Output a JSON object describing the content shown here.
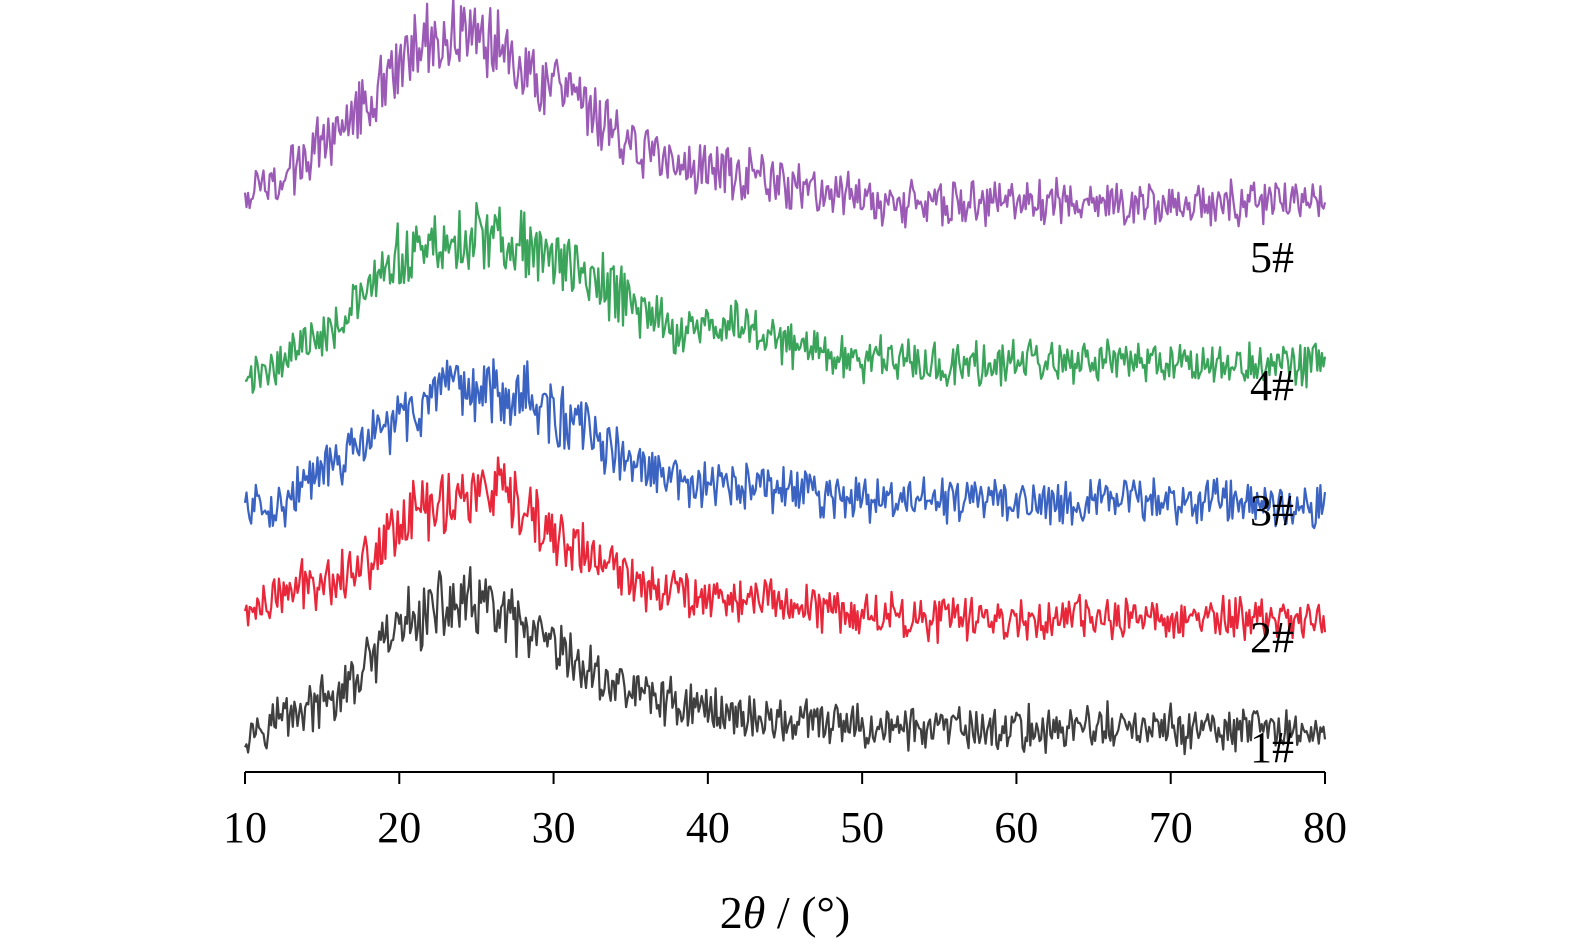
{
  "chart_data": {
    "type": "line",
    "xlabel": "2θ / (°)",
    "xlabel_parts": {
      "prefix": "2",
      "symbol": "θ",
      "suffix": " / (°)"
    },
    "xlim": [
      10,
      80
    ],
    "x_ticks": [
      10,
      20,
      30,
      40,
      50,
      60,
      70,
      80
    ],
    "y_axis_shown": false,
    "grid": false,
    "legend": "inline labels at right",
    "x": [
      10,
      12,
      14,
      16,
      18,
      20,
      22,
      24,
      26,
      28,
      30,
      32,
      34,
      36,
      38,
      40,
      42,
      44,
      46,
      48,
      50,
      52,
      54,
      56,
      58,
      60,
      62,
      64,
      66,
      68,
      70,
      72,
      74,
      76,
      78,
      80
    ],
    "series": [
      {
        "name": "1#",
        "color": "#3f3f3f",
        "values": [
          12,
          18,
          22,
          26,
          40,
          56,
          63,
          66,
          64,
          54,
          46,
          38,
          32,
          28,
          24,
          22,
          19,
          17,
          16,
          15,
          14,
          14,
          13,
          13,
          13,
          13,
          13,
          14,
          14,
          13,
          13,
          13,
          12,
          13,
          12,
          12
        ]
      },
      {
        "name": "2#",
        "color": "#e8283a",
        "values": [
          62,
          68,
          75,
          78,
          85,
          102,
          108,
          112,
          114,
          104,
          95,
          88,
          80,
          75,
          72,
          70,
          68,
          68,
          66,
          64,
          62,
          62,
          60,
          60,
          60,
          60,
          60,
          60,
          60,
          60,
          60,
          60,
          60,
          60,
          60,
          60
        ]
      },
      {
        "name": "3#",
        "color": "#3a63c2",
        "values": [
          108,
          106,
          118,
          126,
          135,
          145,
          152,
          155,
          158,
          156,
          146,
          140,
          130,
          122,
          118,
          115,
          116,
          115,
          114,
          112,
          110,
          110,
          110,
          110,
          110,
          110,
          110,
          110,
          110,
          110,
          110,
          110,
          110,
          110,
          108,
          108
        ]
      },
      {
        "name": "4#",
        "color": "#3aa45a",
        "values": [
          160,
          168,
          178,
          186,
          198,
          212,
          218,
          220,
          222,
          218,
          212,
          206,
          198,
          190,
          182,
          182,
          186,
          180,
          176,
          172,
          170,
          170,
          168,
          168,
          168,
          168,
          168,
          168,
          168,
          168,
          168,
          168,
          168,
          168,
          168,
          168
        ]
      },
      {
        "name": "5#",
        "color": "#9a5ab5",
        "values": [
          240,
          244,
          256,
          268,
          282,
          295,
          305,
          310,
          308,
          296,
          285,
          275,
          265,
          258,
          252,
          250,
          250,
          246,
          242,
          240,
          238,
          236,
          236,
          236,
          236,
          236,
          236,
          236,
          236,
          236,
          236,
          236,
          236,
          236,
          236,
          236
        ]
      }
    ],
    "ylim": [
      0,
      320
    ]
  }
}
